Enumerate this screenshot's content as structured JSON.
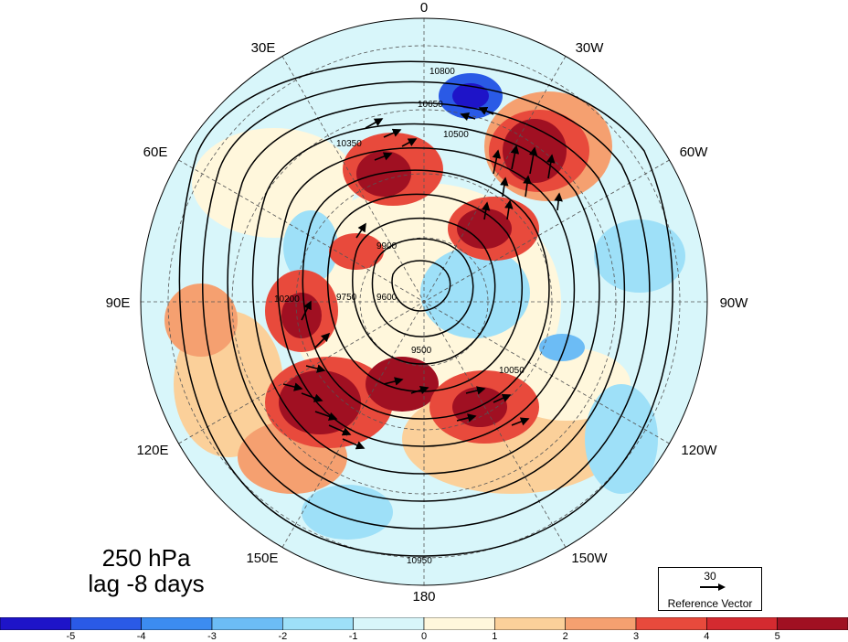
{
  "map": {
    "projection": "north-polar-stereographic",
    "longitude_labels": {
      "lon_0": "0",
      "lon_30e": "30E",
      "lon_60e": "60E",
      "lon_90e": "90E",
      "lon_120e": "120E",
      "lon_150e": "150E",
      "lon_180": "180",
      "lon_150w": "150W",
      "lon_120w": "120W",
      "lon_90w": "90W",
      "lon_60w": "60W",
      "lon_30w": "30W"
    },
    "contour_labels": [
      "9500",
      "9600",
      "9750",
      "9900",
      "10050",
      "10200",
      "10350",
      "10500",
      "10650",
      "10800",
      "10950"
    ],
    "contour_color": "#000000"
  },
  "panel": {
    "level": "250 hPa",
    "lag": "lag -8 days"
  },
  "reference_vector": {
    "value": "30",
    "caption": "Reference Vector"
  },
  "colorbar": {
    "tick_labels": [
      "-5",
      "-4",
      "-3",
      "-2",
      "-1",
      "0",
      "1",
      "2",
      "3",
      "4",
      "5"
    ],
    "colors": [
      "#1e14c8",
      "#2a5ae6",
      "#3c8cf0",
      "#6cbcf5",
      "#9ee0f8",
      "#d8f6fa",
      "#fff7dc",
      "#fbd09a",
      "#f5a070",
      "#e84a3c",
      "#d42a30",
      "#a01022"
    ]
  }
}
